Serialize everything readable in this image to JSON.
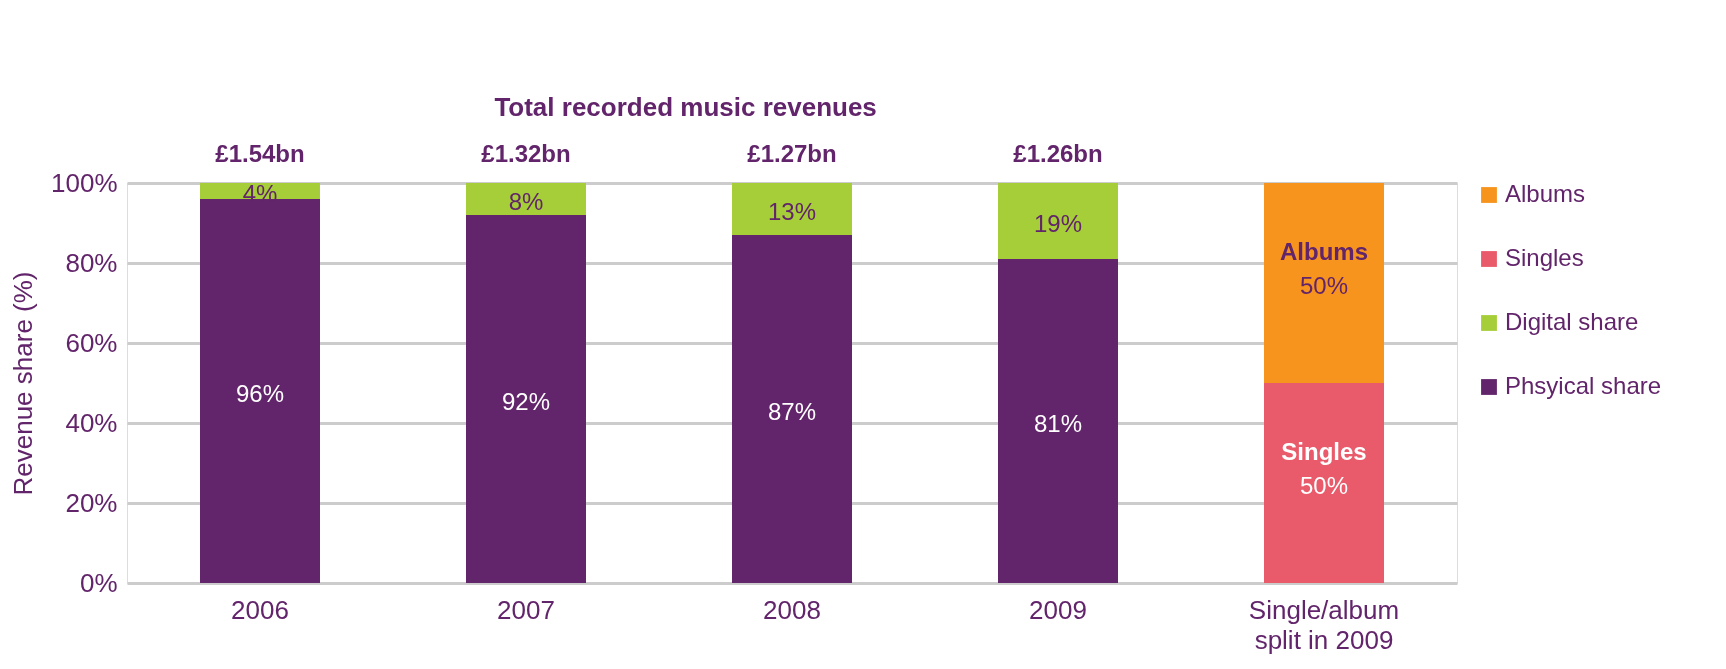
{
  "chart_data": {
    "type": "bar",
    "stacked": true,
    "ylabel": "Revenue share (%)",
    "categories": [
      "2006",
      "2007",
      "2008",
      "2009",
      "Single/album split in 2009"
    ],
    "series": [
      {
        "name": "Phsyical share",
        "color": "#62246a",
        "values": [
          96,
          92,
          87,
          81,
          null
        ],
        "value_labels": [
          "96%",
          "92%",
          "87%",
          "81%",
          null
        ]
      },
      {
        "name": "Digital share",
        "color": "#a6ce39",
        "values": [
          4,
          8,
          13,
          19,
          null
        ],
        "value_labels": [
          "4%",
          "8%",
          "13%",
          "19%",
          null
        ]
      },
      {
        "name": "Singles",
        "color": "#e95a6a",
        "values": [
          null,
          null,
          null,
          null,
          50
        ],
        "value_labels": [
          null,
          null,
          null,
          null,
          "50%"
        ]
      },
      {
        "name": "Albums",
        "color": "#f7941d",
        "values": [
          null,
          null,
          null,
          null,
          50
        ],
        "value_labels": [
          null,
          null,
          null,
          null,
          "50%"
        ]
      }
    ],
    "ylim": [
      0,
      100
    ],
    "yticks": [
      {
        "value": 0,
        "label": "0%"
      },
      {
        "value": 20,
        "label": "20%"
      },
      {
        "value": 40,
        "label": "40%"
      },
      {
        "value": 60,
        "label": "60%"
      },
      {
        "value": 80,
        "label": "80%"
      },
      {
        "value": 100,
        "label": "100%"
      }
    ],
    "annotations": [
      "Total recorded music revenues",
      "Albums",
      "Singles",
      {
        "text": "£1.54bn",
        "x": "2006",
        "y": 100
      },
      {
        "text": "£1.32bn",
        "x": "2007",
        "y": 100
      },
      {
        "text": "£1.27bn",
        "x": "2008",
        "y": 100
      },
      {
        "text": "£1.26bn",
        "x": "2009",
        "y": 100
      }
    ],
    "grid": "y",
    "legend": "right"
  }
}
